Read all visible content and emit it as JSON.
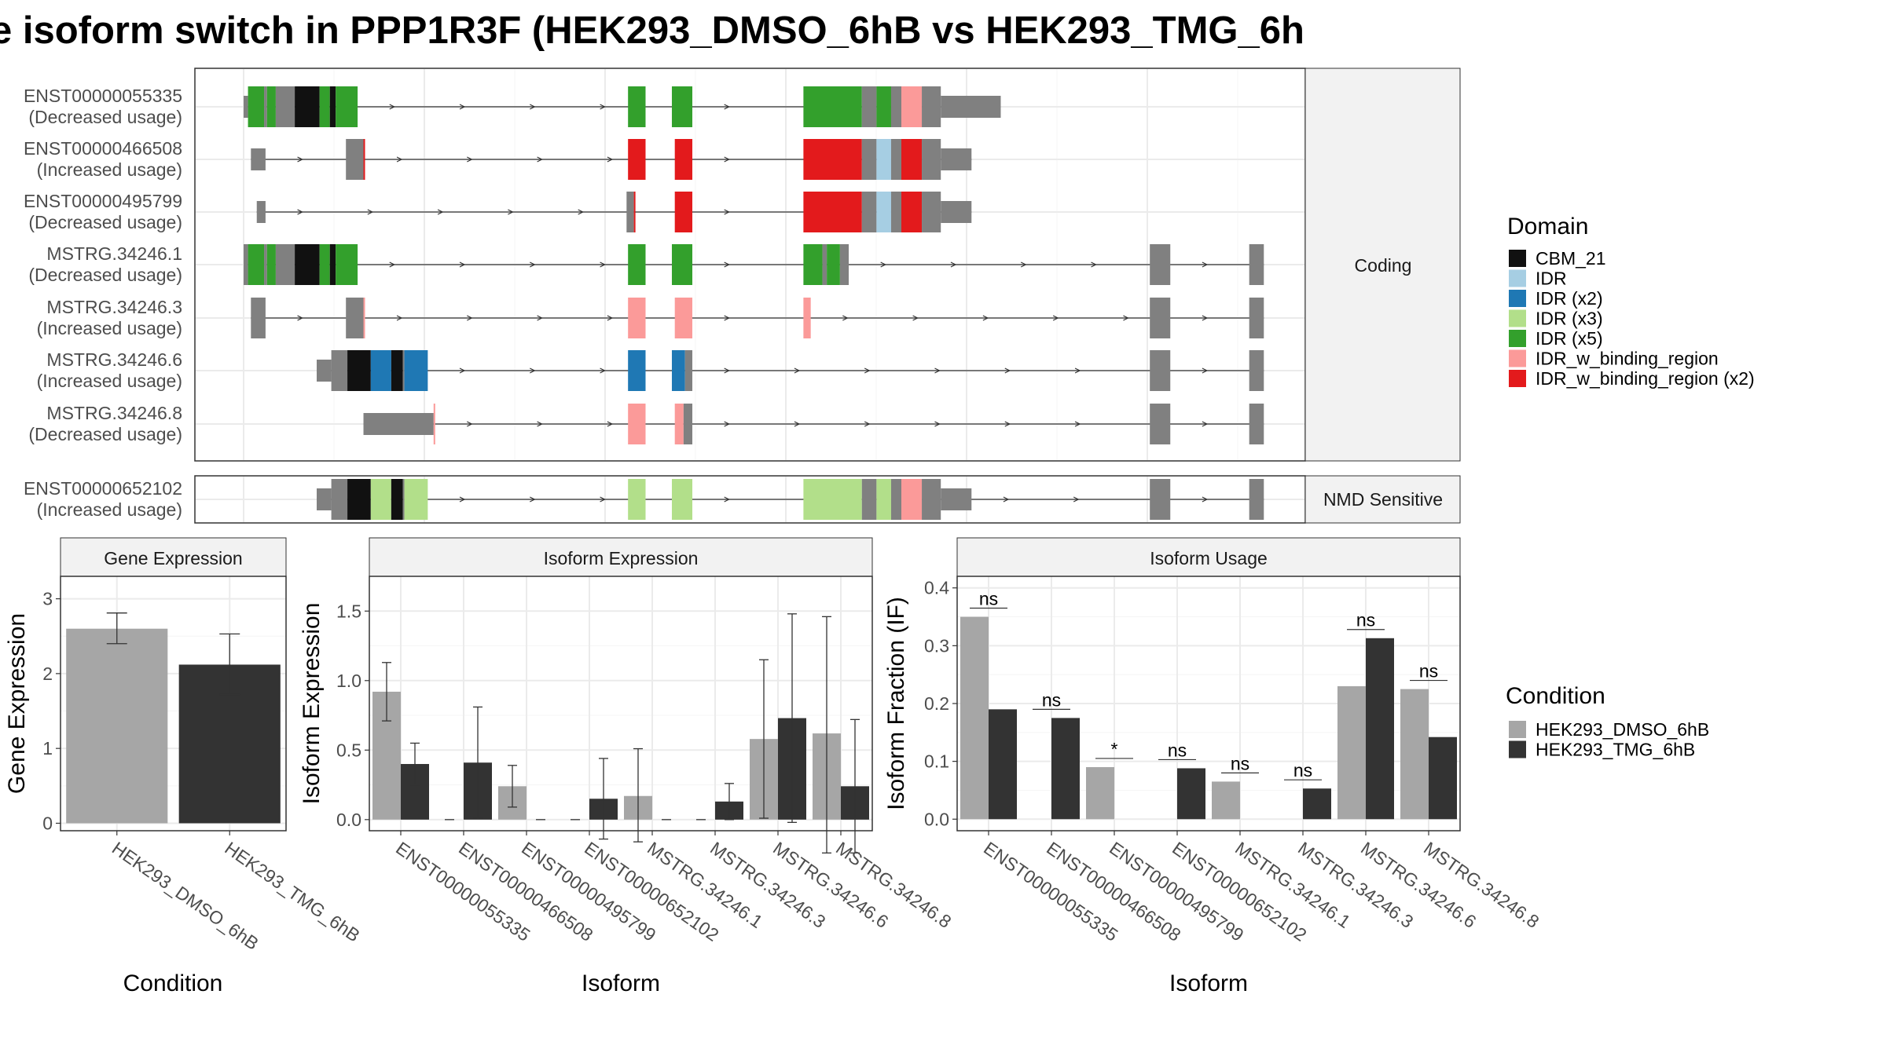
{
  "title": "e isoform switch in PPP1R3F (HEK293_DMSO_6hB vs HEK293_TMG_6h",
  "colors": {
    "CBM_21": "#111111",
    "IDR": "#a6cee3",
    "IDR (x2)": "#1f78b4",
    "IDR (x3)": "#b2df8a",
    "IDR (x5)": "#33a02c",
    "IDR_w_binding_region": "#fb9a99",
    "IDR_w_binding_region (x2)": "#e31a1c",
    "utr": "#808080",
    "cond1": "#a6a6a6",
    "cond2": "#333333"
  },
  "gene_structure": {
    "panels": [
      "Coding",
      "NMD Sensitive"
    ],
    "legend_title": "Domain",
    "legend": [
      "CBM_21",
      "IDR",
      "IDR (x2)",
      "IDR (x3)",
      "IDR (x5)",
      "IDR_w_binding_region",
      "IDR_w_binding_region (x2)"
    ],
    "transcripts": [
      {
        "id": "ENST00000055335",
        "usage": "(Decreased usage)",
        "panel": 0,
        "exons": [
          [
            0,
            3,
            "utr"
          ],
          [
            3,
            14,
            "IDR (x5)"
          ],
          [
            14,
            16,
            "utr"
          ],
          [
            16,
            22,
            "IDR (x5)"
          ],
          [
            22,
            35,
            "utr"
          ],
          [
            35,
            52,
            "CBM_21"
          ],
          [
            52,
            59,
            "IDR (x5)"
          ],
          [
            59,
            63,
            "CBM_21"
          ],
          [
            63,
            78,
            "IDR (x5)"
          ],
          [
            263,
            275,
            "IDR (x5)"
          ],
          [
            293,
            307,
            "IDR (x5)"
          ],
          [
            383,
            423,
            "IDR (x5)"
          ],
          [
            423,
            433,
            "utr"
          ],
          [
            433,
            443,
            "IDR (x5)"
          ],
          [
            443,
            450,
            "utr"
          ],
          [
            450,
            464,
            "IDR_w_binding_region"
          ],
          [
            464,
            477,
            "utr"
          ],
          [
            477,
            518,
            "utr-thin"
          ]
        ]
      },
      {
        "id": "ENST00000466508",
        "usage": "(Increased usage)",
        "panel": 0,
        "exons": [
          [
            5,
            15,
            "utr"
          ],
          [
            70,
            82,
            "utr"
          ],
          [
            82,
            83,
            "IDR_w_binding_region (x2)"
          ],
          [
            263,
            275,
            "IDR_w_binding_region (x2)"
          ],
          [
            295,
            307,
            "IDR_w_binding_region (x2)"
          ],
          [
            383,
            423,
            "IDR_w_binding_region (x2)"
          ],
          [
            423,
            433,
            "utr"
          ],
          [
            433,
            443,
            "IDR"
          ],
          [
            443,
            450,
            "utr"
          ],
          [
            450,
            464,
            "IDR_w_binding_region (x2)"
          ],
          [
            464,
            477,
            "utr"
          ],
          [
            477,
            498,
            "utr-thin"
          ]
        ]
      },
      {
        "id": "ENST00000495799",
        "usage": "(Decreased usage)",
        "panel": 0,
        "exons": [
          [
            9,
            15,
            "utr"
          ],
          [
            262,
            267,
            "utr"
          ],
          [
            267,
            268,
            "IDR_w_binding_region (x2)"
          ],
          [
            295,
            307,
            "IDR_w_binding_region (x2)"
          ],
          [
            383,
            423,
            "IDR_w_binding_region (x2)"
          ],
          [
            423,
            433,
            "utr"
          ],
          [
            433,
            443,
            "IDR"
          ],
          [
            443,
            450,
            "utr"
          ],
          [
            450,
            464,
            "IDR_w_binding_region (x2)"
          ],
          [
            464,
            477,
            "utr"
          ],
          [
            477,
            498,
            "utr-thin"
          ]
        ]
      },
      {
        "id": "MSTRG.34246.1",
        "usage": "(Decreased usage)",
        "panel": 0,
        "exons": [
          [
            0,
            3,
            "utr"
          ],
          [
            3,
            14,
            "IDR (x5)"
          ],
          [
            14,
            16,
            "utr"
          ],
          [
            16,
            22,
            "IDR (x5)"
          ],
          [
            22,
            35,
            "utr"
          ],
          [
            35,
            52,
            "CBM_21"
          ],
          [
            52,
            59,
            "IDR (x5)"
          ],
          [
            59,
            63,
            "CBM_21"
          ],
          [
            63,
            78,
            "IDR (x5)"
          ],
          [
            263,
            275,
            "IDR (x5)"
          ],
          [
            293,
            307,
            "IDR (x5)"
          ],
          [
            383,
            396,
            "IDR (x5)"
          ],
          [
            396,
            399,
            "utr"
          ],
          [
            399,
            408,
            "IDR (x5)"
          ],
          [
            408,
            414,
            "utr"
          ],
          [
            620,
            634,
            "utr"
          ],
          [
            688,
            698,
            "utr"
          ]
        ]
      },
      {
        "id": "MSTRG.34246.3",
        "usage": "(Increased usage)",
        "panel": 0,
        "exons": [
          [
            5,
            15,
            "utr"
          ],
          [
            70,
            82,
            "utr"
          ],
          [
            82,
            83,
            "IDR_w_binding_region"
          ],
          [
            263,
            275,
            "IDR_w_binding_region"
          ],
          [
            295,
            307,
            "IDR_w_binding_region"
          ],
          [
            383,
            388,
            "IDR_w_binding_region"
          ],
          [
            620,
            634,
            "utr"
          ],
          [
            688,
            698,
            "utr"
          ]
        ]
      },
      {
        "id": "MSTRG.34246.6",
        "usage": "(Increased usage)",
        "panel": 0,
        "exons": [
          [
            50,
            60,
            "utr-thin"
          ],
          [
            60,
            71,
            "utr"
          ],
          [
            71,
            87,
            "CBM_21"
          ],
          [
            87,
            101,
            "IDR (x2)"
          ],
          [
            101,
            109,
            "CBM_21"
          ],
          [
            109,
            110,
            "utr"
          ],
          [
            110,
            126,
            "IDR (x2)"
          ],
          [
            263,
            275,
            "IDR (x2)"
          ],
          [
            293,
            302,
            "IDR (x2)"
          ],
          [
            302,
            307,
            "utr"
          ],
          [
            620,
            634,
            "utr"
          ],
          [
            688,
            698,
            "utr"
          ]
        ]
      },
      {
        "id": "MSTRG.34246.8",
        "usage": "(Decreased usage)",
        "panel": 0,
        "exons": [
          [
            82,
            130,
            "utr-thin"
          ],
          [
            130,
            131,
            "IDR_w_binding_region"
          ],
          [
            263,
            275,
            "IDR_w_binding_region"
          ],
          [
            295,
            301,
            "IDR_w_binding_region"
          ],
          [
            301,
            307,
            "utr"
          ],
          [
            620,
            634,
            "utr"
          ],
          [
            688,
            698,
            "utr"
          ]
        ]
      },
      {
        "id": "ENST00000652102",
        "usage": "(Increased usage)",
        "panel": 1,
        "exons": [
          [
            50,
            60,
            "utr-thin"
          ],
          [
            60,
            71,
            "utr"
          ],
          [
            71,
            87,
            "CBM_21"
          ],
          [
            87,
            101,
            "IDR (x3)"
          ],
          [
            101,
            109,
            "CBM_21"
          ],
          [
            109,
            110,
            "utr"
          ],
          [
            110,
            126,
            "IDR (x3)"
          ],
          [
            263,
            275,
            "IDR (x3)"
          ],
          [
            293,
            307,
            "IDR (x3)"
          ],
          [
            383,
            423,
            "IDR (x3)"
          ],
          [
            423,
            433,
            "utr"
          ],
          [
            433,
            443,
            "IDR (x3)"
          ],
          [
            443,
            450,
            "utr"
          ],
          [
            450,
            464,
            "IDR_w_binding_region"
          ],
          [
            464,
            477,
            "utr"
          ],
          [
            477,
            498,
            "utr-thin"
          ],
          [
            620,
            634,
            "utr"
          ],
          [
            688,
            698,
            "utr"
          ]
        ]
      }
    ]
  },
  "gene_expression": {
    "strip": "Gene Expression",
    "xlabel": "Condition",
    "ylabel": "Gene Expression",
    "yticks": [
      "0",
      "1",
      "2",
      "3"
    ],
    "categories": [
      "HEK293_DMSO_6hB",
      "HEK293_TMG_6hB"
    ]
  },
  "isoform_expression": {
    "strip": "Isoform Expression",
    "xlabel": "Isoform",
    "ylabel": "Isoform Expression",
    "yticks": [
      "0.0",
      "0.5",
      "1.0",
      "1.5"
    ],
    "categories": [
      "ENST00000055335",
      "ENST00000466508",
      "ENST00000495799",
      "ENST00000652102",
      "MSTRG.34246.1",
      "MSTRG.34246.3",
      "MSTRG.34246.6",
      "MSTRG.34246.8"
    ]
  },
  "isoform_usage": {
    "strip": "Isoform Usage",
    "xlabel": "Isoform",
    "ylabel": "Isoform Fraction (IF)",
    "yticks": [
      "0.0",
      "0.1",
      "0.2",
      "0.3",
      "0.4"
    ],
    "categories": [
      "ENST00000055335",
      "ENST00000466508",
      "ENST00000495799",
      "ENST00000652102",
      "MSTRG.34246.1",
      "MSTRG.34246.3",
      "MSTRG.34246.6",
      "MSTRG.34246.8"
    ],
    "significance": [
      "ns",
      "ns",
      "*",
      "ns",
      "ns",
      "ns",
      "ns",
      "ns"
    ]
  },
  "condition_legend": {
    "title": "Condition",
    "items": [
      "HEK293_DMSO_6hB",
      "HEK293_TMG_6hB"
    ]
  },
  "chart_data": [
    {
      "type": "bar",
      "title": "Gene Expression",
      "xlabel": "Condition",
      "ylabel": "Gene Expression",
      "ylim": [
        -0.1,
        3.3
      ],
      "categories": [
        "HEK293_DMSO_6hB",
        "HEK293_TMG_6hB"
      ],
      "values": [
        2.6,
        2.12
      ],
      "error_low": [
        2.4,
        1.72
      ],
      "error_high": [
        2.81,
        2.53
      ]
    },
    {
      "type": "bar",
      "title": "Isoform Expression",
      "xlabel": "Isoform",
      "ylabel": "Isoform Expression",
      "ylim": [
        -0.08,
        1.75
      ],
      "categories": [
        "ENST00000055335",
        "ENST00000466508",
        "ENST00000495799",
        "ENST00000652102",
        "MSTRG.34246.1",
        "MSTRG.34246.3",
        "MSTRG.34246.6",
        "MSTRG.34246.8"
      ],
      "series": [
        {
          "name": "HEK293_DMSO_6hB",
          "values": [
            0.92,
            0.0,
            0.24,
            0.0,
            0.17,
            0.0,
            0.58,
            0.62
          ],
          "error_low": [
            0.71,
            0.0,
            0.09,
            0.0,
            -0.16,
            0.0,
            0.01,
            -0.24
          ],
          "error_high": [
            1.13,
            0.0,
            0.39,
            0.0,
            0.51,
            0.0,
            1.15,
            1.46
          ]
        },
        {
          "name": "HEK293_TMG_6hB",
          "values": [
            0.4,
            0.41,
            0.0,
            0.15,
            0.0,
            0.13,
            0.73,
            0.24
          ],
          "error_low": [
            0.25,
            0.01,
            0.0,
            -0.14,
            0.0,
            0.0,
            -0.02,
            -0.24
          ],
          "error_high": [
            0.55,
            0.81,
            0.0,
            0.44,
            0.0,
            0.26,
            1.48,
            0.72
          ]
        }
      ]
    },
    {
      "type": "bar",
      "title": "Isoform Usage",
      "xlabel": "Isoform",
      "ylabel": "Isoform Fraction (IF)",
      "ylim": [
        -0.02,
        0.42
      ],
      "categories": [
        "ENST00000055335",
        "ENST00000466508",
        "ENST00000495799",
        "ENST00000652102",
        "MSTRG.34246.1",
        "MSTRG.34246.3",
        "MSTRG.34246.6",
        "MSTRG.34246.8"
      ],
      "series": [
        {
          "name": "HEK293_DMSO_6hB",
          "values": [
            0.35,
            0.0,
            0.09,
            0.0,
            0.065,
            0.0,
            0.23,
            0.225
          ]
        },
        {
          "name": "HEK293_TMG_6hB",
          "values": [
            0.19,
            0.175,
            0.0,
            0.088,
            0.0,
            0.053,
            0.313,
            0.142
          ]
        }
      ],
      "significance": [
        "ns",
        "ns",
        "*",
        "ns",
        "ns",
        "ns",
        "ns",
        "ns"
      ]
    }
  ]
}
